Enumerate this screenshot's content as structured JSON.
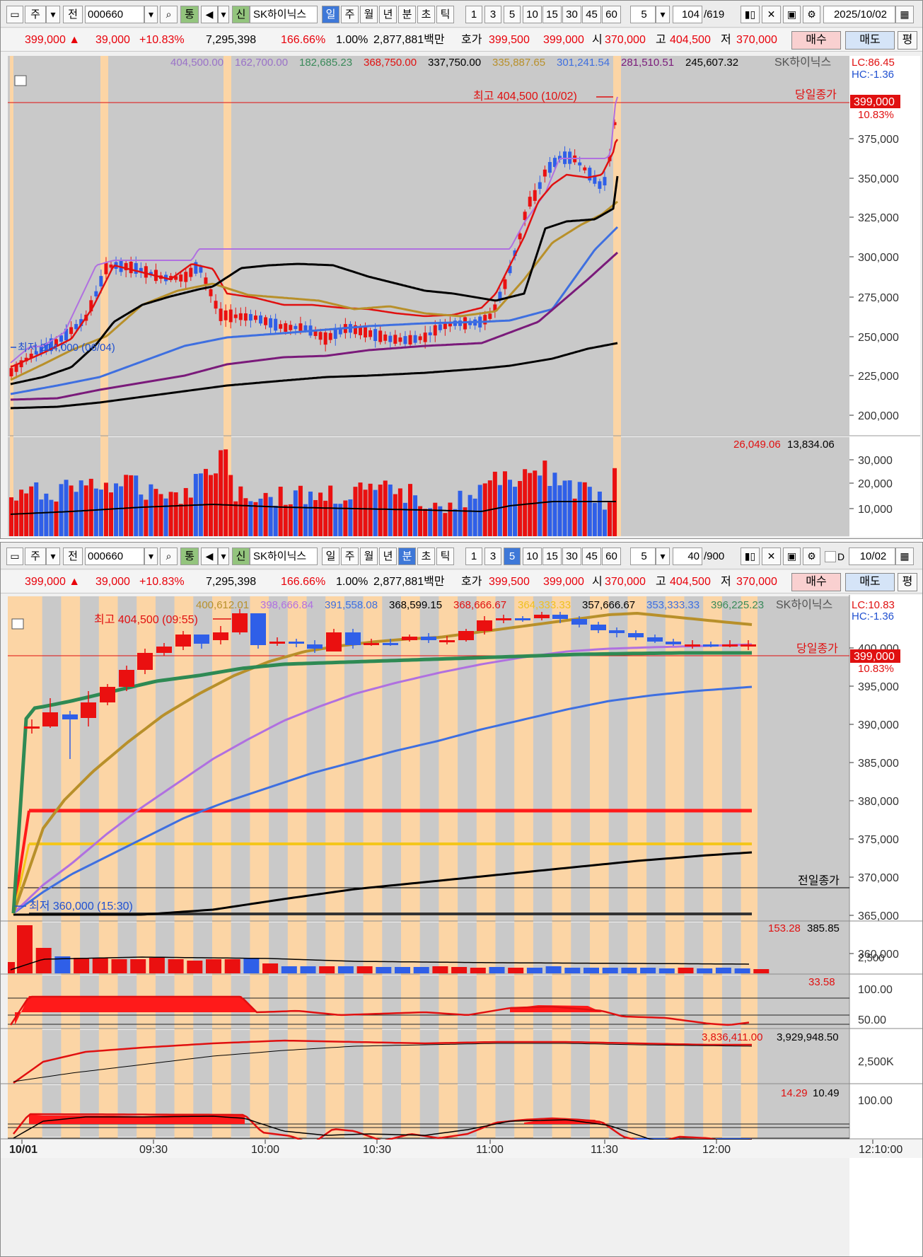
{
  "top": {
    "toolbar": {
      "type_label": "주",
      "prev_label": "전",
      "code": "000660",
      "tong": "통",
      "sin": "신",
      "name": "SK하이닉스",
      "periods": [
        {
          "label": "일",
          "active": true
        },
        {
          "label": "주",
          "active": false
        },
        {
          "label": "월",
          "active": false
        },
        {
          "label": "년",
          "active": false
        },
        {
          "label": "분",
          "active": false
        },
        {
          "label": "초",
          "active": false
        },
        {
          "label": "틱",
          "active": false
        }
      ],
      "intervals": [
        "1",
        "3",
        "5",
        "10",
        "15",
        "30",
        "45",
        "60"
      ],
      "interval_selected": "5",
      "count": "104",
      "total": "/619",
      "date": "2025/10/02"
    },
    "quote": {
      "price": "399,000 ▲",
      "change": "39,000",
      "change_pct": "+10.83%",
      "volume": "7,295,398",
      "vol_ratio": "166.66%",
      "turnover": "1.00%",
      "amount": "2,877,881백만",
      "ask_label": "호가",
      "ask": "399,500",
      "bid": "399,000",
      "open_label": "시",
      "open": "370,000",
      "high_label": "고",
      "high": "404,500",
      "low_label": "저",
      "low": "370,000",
      "buy": "매수",
      "sell": "매도",
      "avg": "평"
    },
    "legend": [
      "404,500.00",
      "162,700.00",
      "182,685.23",
      "368,750.00",
      "337,750.00",
      "335,887.65",
      "301,241.54",
      "281,510.51",
      "245,607.32"
    ],
    "legend_name": "SK하이닉스",
    "lc": "LC:86.45",
    "hc": "HC:-1.36",
    "high_note": "최고 404,500 (10/02)",
    "low_note": "최저 214,000 (06/04)",
    "close_tag": "당일종가",
    "price_tag": "399,000",
    "pct_tag": "10.83%",
    "price_ticks": [
      "375,000",
      "350,000",
      "325,000",
      "300,000",
      "275,000",
      "250,000",
      "225,000",
      "200,000"
    ],
    "vol_legend_a": "26,049.06",
    "vol_legend_b": "13,834.06",
    "vol_ticks": [
      "30,000",
      "20,000",
      "10,000"
    ]
  },
  "bottom": {
    "toolbar": {
      "type_label": "주",
      "prev_label": "전",
      "code": "000660",
      "tong": "통",
      "sin": "신",
      "name": "SK하이닉스",
      "periods": [
        {
          "label": "일",
          "active": false
        },
        {
          "label": "주",
          "active": false
        },
        {
          "label": "월",
          "active": false
        },
        {
          "label": "년",
          "active": false
        },
        {
          "label": "분",
          "active": true
        },
        {
          "label": "초",
          "active": false
        },
        {
          "label": "틱",
          "active": false
        }
      ],
      "intervals": [
        "1",
        "3",
        "5",
        "10",
        "15",
        "30",
        "45",
        "60"
      ],
      "interval_active": "5",
      "interval_selected": "5",
      "count": "40",
      "total": "/900",
      "check_label": "D",
      "date": "10/02"
    },
    "legend": [
      "400,612.01",
      "398,666.84",
      "391,558.08",
      "368,599.15",
      "368,666.67",
      "364,333.33",
      "357,666.67",
      "353,333.33",
      "396,225.23"
    ],
    "legend_name": "SK하이닉스",
    "lc": "LC:10.83",
    "hc": "HC:-1.36",
    "high_note": "최고 404,500 (09:55)",
    "low_note": "최저 360,000 (15:30)",
    "close_tag": "당일종가",
    "prev_close_tag": "전일종가",
    "price_tag": "399,000",
    "pct_tag": "10.83%",
    "price_ticks": [
      "400,000",
      "395,000",
      "390,000",
      "385,000",
      "380,000",
      "375,000",
      "370,000",
      "365,000",
      "360,000"
    ],
    "vol_legend_a": "153.28",
    "vol_legend_b": "385.85",
    "vol_tick": "2,500",
    "ind1_value": "33.58",
    "ind1_ticks": [
      "100.00",
      "50.00"
    ],
    "ind2_value_a": "3,836,411.00",
    "ind2_value_b": "3,929,948.50",
    "ind2_tick": "2,500K",
    "ind3_value_a": "14.29",
    "ind3_value_b": "10.49",
    "ind3_tick": "100.00",
    "time_labels": [
      "10/01",
      "09:30",
      "10:00",
      "10:30",
      "11:00",
      "11:30",
      "12:00",
      "12:10:00"
    ]
  },
  "colors": {
    "up": "#ea1010",
    "down": "#2f5fe8",
    "plot_bg": "#c9c9c9",
    "band": "#fcd5a5"
  }
}
